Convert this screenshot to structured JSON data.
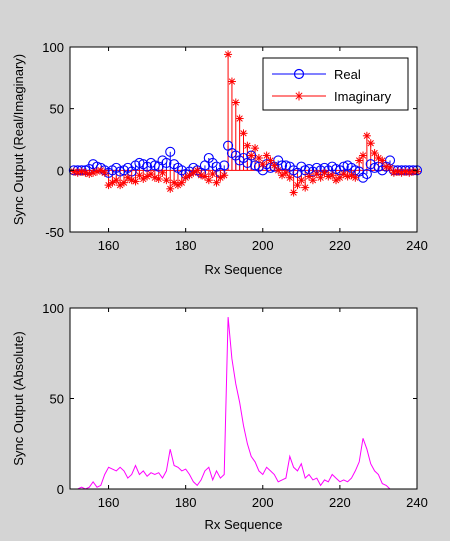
{
  "figure": {
    "background": "#d4d4d4",
    "axes_background": "#ffffff"
  },
  "chart_data": [
    {
      "type": "stem",
      "xlabel": "Rx Sequence",
      "ylabel": "Sync Output (Real/Imaginary)",
      "xlim": [
        150,
        240
      ],
      "ylim": [
        -50,
        100
      ],
      "xticks": [
        "160",
        "180",
        "200",
        "220",
        "240"
      ],
      "yticks": [
        "-50",
        "0",
        "50",
        "100"
      ],
      "legend": {
        "position": "top-right",
        "entries": [
          "Real",
          "Imaginary"
        ]
      },
      "series": [
        {
          "name": "Real",
          "color": "#0000ff",
          "marker": "circle",
          "x": [
            151,
            152,
            153,
            154,
            155,
            156,
            157,
            158,
            159,
            160,
            161,
            162,
            163,
            164,
            165,
            166,
            167,
            168,
            169,
            170,
            171,
            172,
            173,
            174,
            175,
            176,
            177,
            178,
            179,
            180,
            181,
            182,
            183,
            184,
            185,
            186,
            187,
            188,
            189,
            190,
            191,
            192,
            193,
            194,
            195,
            196,
            197,
            198,
            199,
            200,
            201,
            202,
            203,
            204,
            205,
            206,
            207,
            208,
            209,
            210,
            211,
            212,
            213,
            214,
            215,
            216,
            217,
            218,
            219,
            220,
            221,
            222,
            223,
            224,
            225,
            226,
            227,
            228,
            229,
            230,
            231,
            232,
            233,
            234,
            235,
            236,
            237,
            238,
            239,
            240
          ],
          "y": [
            0,
            0,
            0,
            0,
            1,
            5,
            3,
            2,
            0,
            -2,
            0,
            2,
            -1,
            0,
            2,
            -1,
            4,
            6,
            5,
            3,
            6,
            4,
            3,
            8,
            6,
            15,
            5,
            2,
            0,
            -3,
            -1,
            2,
            0,
            -2,
            4,
            10,
            6,
            3,
            -2,
            4,
            20,
            14,
            12,
            8,
            10,
            6,
            12,
            4,
            3,
            0,
            5,
            2,
            3,
            8,
            4,
            4,
            3,
            0,
            -2,
            3,
            0,
            1,
            -1,
            2,
            0,
            2,
            0,
            3,
            1,
            0,
            3,
            4,
            2,
            0,
            -1,
            -6,
            -3,
            5,
            2,
            3,
            0,
            3,
            8,
            0,
            0,
            0,
            0,
            0,
            0,
            0
          ]
        },
        {
          "name": "Imaginary",
          "color": "#ff0000",
          "marker": "asterisk",
          "x": [
            151,
            152,
            153,
            154,
            155,
            156,
            157,
            158,
            159,
            160,
            161,
            162,
            163,
            164,
            165,
            166,
            167,
            168,
            169,
            170,
            171,
            172,
            173,
            174,
            175,
            176,
            177,
            178,
            179,
            180,
            181,
            182,
            183,
            184,
            185,
            186,
            187,
            188,
            189,
            190,
            191,
            192,
            193,
            194,
            195,
            196,
            197,
            198,
            199,
            200,
            201,
            202,
            203,
            204,
            205,
            206,
            207,
            208,
            209,
            210,
            211,
            212,
            213,
            214,
            215,
            216,
            217,
            218,
            219,
            220,
            221,
            222,
            223,
            224,
            225,
            226,
            227,
            228,
            229,
            230,
            231,
            232,
            233,
            234,
            235,
            236,
            237,
            238,
            239,
            240
          ],
          "y": [
            -1,
            -2,
            -1,
            -2,
            -3,
            -2,
            -1,
            0,
            -2,
            -12,
            -10,
            -8,
            -12,
            -10,
            -6,
            -8,
            -9,
            -4,
            -7,
            -5,
            -3,
            -6,
            -7,
            -2,
            -8,
            -15,
            -10,
            -12,
            -10,
            -6,
            -4,
            -2,
            0,
            -4,
            -5,
            -8,
            -3,
            -10,
            -6,
            -4,
            94,
            72,
            55,
            42,
            30,
            20,
            12,
            18,
            10,
            5,
            12,
            8,
            4,
            0,
            -4,
            -2,
            -6,
            -18,
            -12,
            -8,
            -14,
            -5,
            -8,
            -3,
            -6,
            -2,
            -5,
            -4,
            -8,
            -6,
            -3,
            -5,
            -4,
            -6,
            8,
            12,
            28,
            22,
            14,
            10,
            8,
            3,
            2,
            -2,
            -1,
            -2,
            -1,
            -2,
            -1,
            -1
          ]
        }
      ]
    },
    {
      "type": "line",
      "xlabel": "Rx Sequence",
      "ylabel": "Sync Output (Absolute)",
      "xlim": [
        150,
        240
      ],
      "ylim": [
        0,
        100
      ],
      "xticks": [
        "160",
        "180",
        "200",
        "220",
        "240"
      ],
      "yticks": [
        "0",
        "50",
        "100"
      ],
      "series": [
        {
          "color": "#ff00ff",
          "x": [
            150,
            151,
            152,
            153,
            154,
            155,
            156,
            157,
            158,
            159,
            160,
            161,
            162,
            163,
            164,
            165,
            166,
            167,
            168,
            169,
            170,
            171,
            172,
            173,
            174,
            175,
            176,
            177,
            178,
            179,
            180,
            181,
            182,
            183,
            184,
            185,
            186,
            187,
            188,
            189,
            190,
            191,
            192,
            193,
            194,
            195,
            196,
            197,
            198,
            199,
            200,
            201,
            202,
            203,
            204,
            205,
            206,
            207,
            208,
            209,
            210,
            211,
            212,
            213,
            214,
            215,
            216,
            217,
            218,
            219,
            220,
            221,
            222,
            223,
            224,
            225,
            226,
            227,
            228,
            229,
            230,
            231,
            232,
            233,
            234,
            235,
            236,
            237,
            238,
            239,
            240
          ],
          "y": [
            0,
            0,
            0,
            1,
            0,
            1,
            4,
            1,
            2,
            8,
            12,
            11,
            10,
            12,
            10,
            6,
            8,
            13,
            8,
            10,
            7,
            9,
            8,
            9,
            6,
            10,
            22,
            13,
            12,
            10,
            11,
            8,
            4,
            2,
            5,
            10,
            12,
            5,
            10,
            6,
            8,
            95,
            72,
            58,
            48,
            35,
            25,
            18,
            15,
            10,
            8,
            12,
            10,
            8,
            4,
            5,
            6,
            18,
            12,
            10,
            14,
            6,
            8,
            5,
            6,
            2,
            5,
            4,
            8,
            6,
            4,
            5,
            4,
            6,
            10,
            15,
            28,
            22,
            14,
            10,
            8,
            3,
            2,
            0,
            0,
            0,
            0,
            0,
            0,
            0,
            0
          ]
        }
      ]
    }
  ]
}
